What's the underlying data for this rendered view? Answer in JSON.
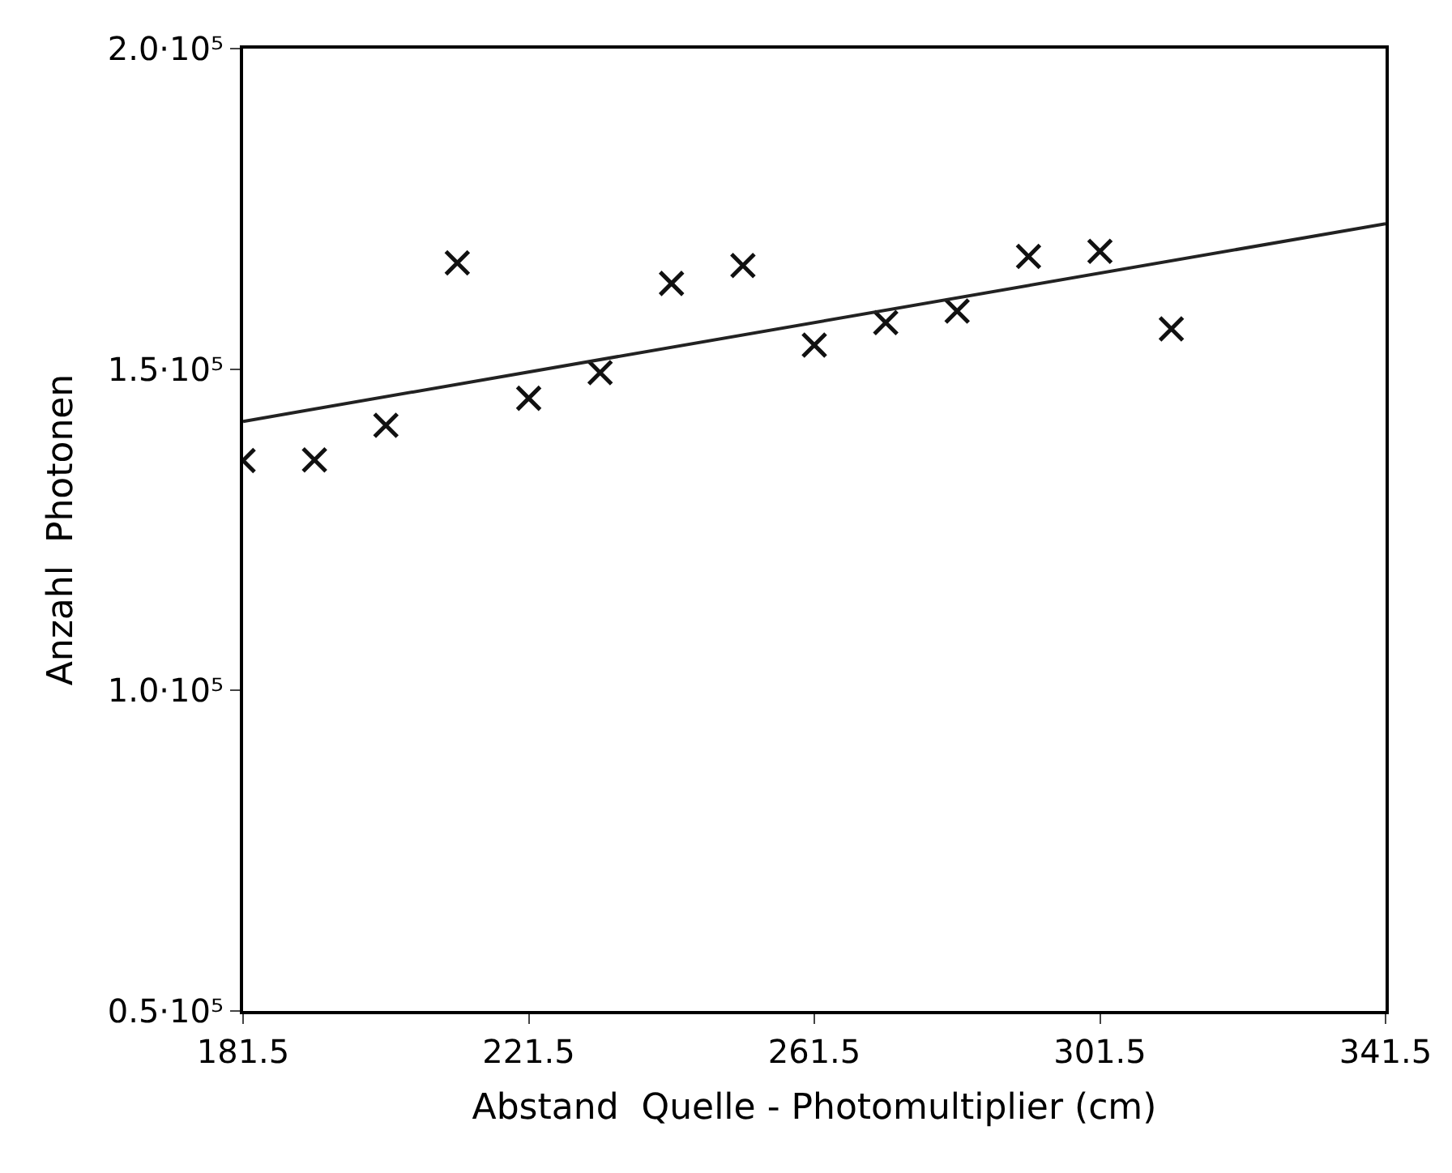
{
  "chart_data": {
    "type": "scatter",
    "xlabel": "Abstand  Quelle - Photomultiplier (cm)",
    "ylabel": "Anzahl  Photonen",
    "x": [
      181.5,
      191.5,
      201.5,
      211.5,
      221.5,
      231.5,
      241.5,
      251.5,
      261.5,
      271.5,
      281.5,
      291.5,
      301.5,
      311.5
    ],
    "series": [
      {
        "color": "#111111",
        "marker": "cross",
        "values": [
          135800,
          135900,
          141300,
          166600,
          145500,
          149500,
          163400,
          166200,
          153800,
          157300,
          159100,
          167600,
          168400,
          156300
        ]
      },
      {
        "type": "line",
        "color": "#222222",
        "x": [
          181.5,
          341.5
        ],
        "values": [
          141900,
          172700
        ],
        "line_style": "solid",
        "marker": "none"
      }
    ],
    "xlim": [
      181.5,
      341.5
    ],
    "xticks": [
      181.5,
      221.5,
      261.5,
      301.5,
      341.5
    ],
    "ylim": [
      50000,
      200000
    ],
    "yticks": [
      {
        "value": 50000,
        "label": "0.5·10⁵"
      },
      {
        "value": 100000,
        "label": "1.0·10⁵"
      },
      {
        "value": 150000,
        "label": "1.5·10⁵"
      },
      {
        "value": 200000,
        "label": "2.0·10⁵"
      }
    ]
  }
}
